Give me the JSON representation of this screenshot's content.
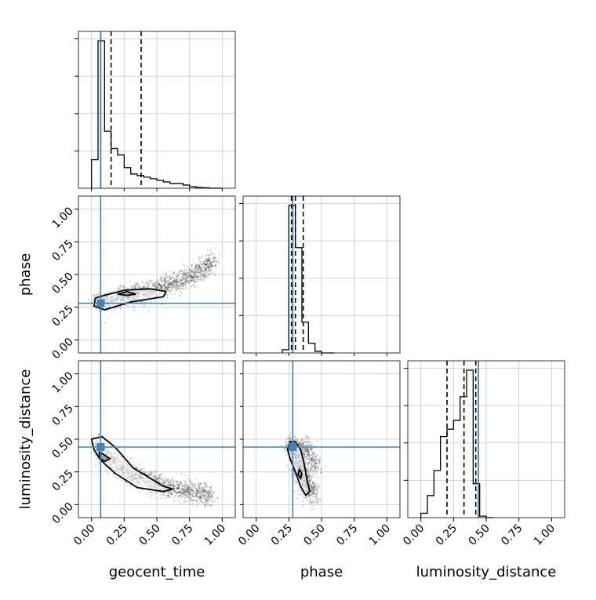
{
  "chart_data": {
    "type": "corner",
    "parameters": [
      "geocent_time",
      "phase",
      "luminosity_distance"
    ],
    "axis_labels": {
      "x": [
        "geocent_time",
        "phase",
        "luminosity_distance"
      ],
      "y": [
        "phase",
        "luminosity_distance"
      ]
    },
    "axis_range": [
      -0.1,
      1.1
    ],
    "ticks": [
      0.0,
      0.25,
      0.5,
      0.75,
      1.0
    ],
    "tick_labels": [
      "0.00",
      "0.25",
      "0.50",
      "0.75",
      "1.00"
    ],
    "grid": true,
    "truths": {
      "geocent_time": 0.07,
      "phase": 0.28,
      "luminosity_distance": 0.44
    },
    "truth_color": "#4682b4",
    "histogram_color": "#000000",
    "histograms": [
      {
        "parameter": "geocent_time",
        "bin_edges": [
          0.0,
          0.05,
          0.1,
          0.15,
          0.2,
          0.25,
          0.3,
          0.35,
          0.4,
          0.45,
          0.5,
          0.55,
          0.6,
          0.65,
          0.7,
          0.75,
          0.8,
          0.85,
          0.9,
          0.95,
          1.0
        ],
        "counts": [
          0.18,
          0.93,
          0.36,
          0.25,
          0.21,
          0.13,
          0.09,
          0.08,
          0.07,
          0.06,
          0.05,
          0.04,
          0.03,
          0.03,
          0.02,
          0.01,
          0.005,
          0.003,
          0.0,
          0.0
        ],
        "quantiles": [
          0.07,
          0.15,
          0.38
        ]
      },
      {
        "parameter": "phase",
        "bin_edges": [
          0.2,
          0.25,
          0.3,
          0.35,
          0.4,
          0.45,
          0.5,
          0.55,
          0.6
        ],
        "counts": [
          0.02,
          0.91,
          0.65,
          0.19,
          0.06,
          0.01,
          0.0,
          0.0
        ],
        "quantiles": [
          0.27,
          0.3,
          0.36
        ]
      },
      {
        "parameter": "luminosity_distance",
        "bin_edges": [
          0.0,
          0.05,
          0.1,
          0.15,
          0.2,
          0.25,
          0.3,
          0.35,
          0.4,
          0.45,
          0.5,
          0.55
        ],
        "counts": [
          0.03,
          0.15,
          0.32,
          0.55,
          0.6,
          0.66,
          0.82,
          1.0,
          0.23,
          0.01,
          0.0
        ],
        "quantiles": [
          0.2,
          0.33,
          0.42
        ]
      }
    ],
    "scatter_panels": [
      {
        "x": "geocent_time",
        "y": "phase",
        "mode_points": [
          {
            "x": 0.06,
            "y": 0.29
          },
          {
            "x": 0.1,
            "y": 0.29
          },
          {
            "x": 0.15,
            "y": 0.3
          },
          {
            "x": 0.2,
            "y": 0.32
          },
          {
            "x": 0.25,
            "y": 0.33
          },
          {
            "x": 0.3,
            "y": 0.34
          },
          {
            "x": 0.35,
            "y": 0.35
          },
          {
            "x": 0.4,
            "y": 0.36
          },
          {
            "x": 0.45,
            "y": 0.37
          },
          {
            "x": 0.5,
            "y": 0.39
          },
          {
            "x": 0.55,
            "y": 0.41
          },
          {
            "x": 0.6,
            "y": 0.42
          },
          {
            "x": 0.65,
            "y": 0.44
          },
          {
            "x": 0.7,
            "y": 0.46
          },
          {
            "x": 0.75,
            "y": 0.48
          },
          {
            "x": 0.8,
            "y": 0.51
          },
          {
            "x": 0.85,
            "y": 0.54
          },
          {
            "x": 0.88,
            "y": 0.57
          },
          {
            "x": 0.92,
            "y": 0.6
          }
        ],
        "spread": [
          0.05,
          0.1
        ],
        "contours": [
          [
            [
              0.02,
              0.26
            ],
            [
              0.1,
              0.23
            ],
            [
              0.3,
              0.29
            ],
            [
              0.55,
              0.33
            ],
            [
              0.57,
              0.37
            ],
            [
              0.45,
              0.39
            ],
            [
              0.25,
              0.38
            ],
            [
              0.1,
              0.34
            ],
            [
              0.03,
              0.32
            ],
            [
              0.02,
              0.26
            ]
          ],
          [
            [
              0.2,
              0.35
            ],
            [
              0.27,
              0.34
            ],
            [
              0.34,
              0.35
            ],
            [
              0.27,
              0.37
            ],
            [
              0.2,
              0.35
            ]
          ]
        ]
      },
      {
        "x": "geocent_time",
        "y": "luminosity_distance",
        "mode_points": [
          {
            "x": 0.05,
            "y": 0.44
          },
          {
            "x": 0.08,
            "y": 0.42
          },
          {
            "x": 0.12,
            "y": 0.38
          },
          {
            "x": 0.16,
            "y": 0.34
          },
          {
            "x": 0.2,
            "y": 0.3
          },
          {
            "x": 0.25,
            "y": 0.27
          },
          {
            "x": 0.3,
            "y": 0.24
          },
          {
            "x": 0.35,
            "y": 0.22
          },
          {
            "x": 0.4,
            "y": 0.2
          },
          {
            "x": 0.45,
            "y": 0.18
          },
          {
            "x": 0.5,
            "y": 0.16
          },
          {
            "x": 0.55,
            "y": 0.14
          },
          {
            "x": 0.6,
            "y": 0.13
          },
          {
            "x": 0.65,
            "y": 0.12
          },
          {
            "x": 0.7,
            "y": 0.11
          },
          {
            "x": 0.75,
            "y": 0.1
          },
          {
            "x": 0.8,
            "y": 0.09
          },
          {
            "x": 0.85,
            "y": 0.08
          },
          {
            "x": 0.9,
            "y": 0.07
          }
        ],
        "spread": [
          0.05,
          0.1
        ],
        "contours": [
          [
            [
              0.0,
              0.5
            ],
            [
              0.08,
              0.52
            ],
            [
              0.18,
              0.44
            ],
            [
              0.32,
              0.28
            ],
            [
              0.55,
              0.14
            ],
            [
              0.62,
              0.12
            ],
            [
              0.55,
              0.1
            ],
            [
              0.35,
              0.13
            ],
            [
              0.18,
              0.24
            ],
            [
              0.07,
              0.34
            ],
            [
              0.02,
              0.42
            ],
            [
              0.0,
              0.5
            ]
          ],
          [
            [
              0.06,
              0.4
            ],
            [
              0.1,
              0.38
            ],
            [
              0.14,
              0.35
            ],
            [
              0.1,
              0.33
            ],
            [
              0.06,
              0.36
            ],
            [
              0.06,
              0.4
            ]
          ]
        ]
      },
      {
        "x": "phase",
        "y": "luminosity_distance",
        "mode_points": [
          {
            "x": 0.26,
            "y": 0.45
          },
          {
            "x": 0.29,
            "y": 0.42
          },
          {
            "x": 0.3,
            "y": 0.38
          },
          {
            "x": 0.31,
            "y": 0.34
          },
          {
            "x": 0.33,
            "y": 0.3
          },
          {
            "x": 0.34,
            "y": 0.26
          },
          {
            "x": 0.36,
            "y": 0.22
          },
          {
            "x": 0.37,
            "y": 0.18
          },
          {
            "x": 0.39,
            "y": 0.14
          },
          {
            "x": 0.41,
            "y": 0.11
          },
          {
            "x": 0.43,
            "y": 0.09
          },
          {
            "x": 0.35,
            "y": 0.45
          },
          {
            "x": 0.4,
            "y": 0.42
          },
          {
            "x": 0.43,
            "y": 0.35
          },
          {
            "x": 0.44,
            "y": 0.28
          }
        ],
        "spread": [
          0.05,
          0.1
        ],
        "contours": [
          [
            [
              0.26,
              0.48
            ],
            [
              0.3,
              0.48
            ],
            [
              0.34,
              0.42
            ],
            [
              0.37,
              0.3
            ],
            [
              0.39,
              0.18
            ],
            [
              0.41,
              0.1
            ],
            [
              0.38,
              0.07
            ],
            [
              0.34,
              0.14
            ],
            [
              0.3,
              0.25
            ],
            [
              0.26,
              0.35
            ],
            [
              0.24,
              0.42
            ],
            [
              0.26,
              0.48
            ]
          ],
          [
            [
              0.33,
              0.27
            ],
            [
              0.35,
              0.24
            ],
            [
              0.34,
              0.2
            ],
            [
              0.32,
              0.23
            ],
            [
              0.33,
              0.27
            ]
          ]
        ]
      }
    ]
  }
}
